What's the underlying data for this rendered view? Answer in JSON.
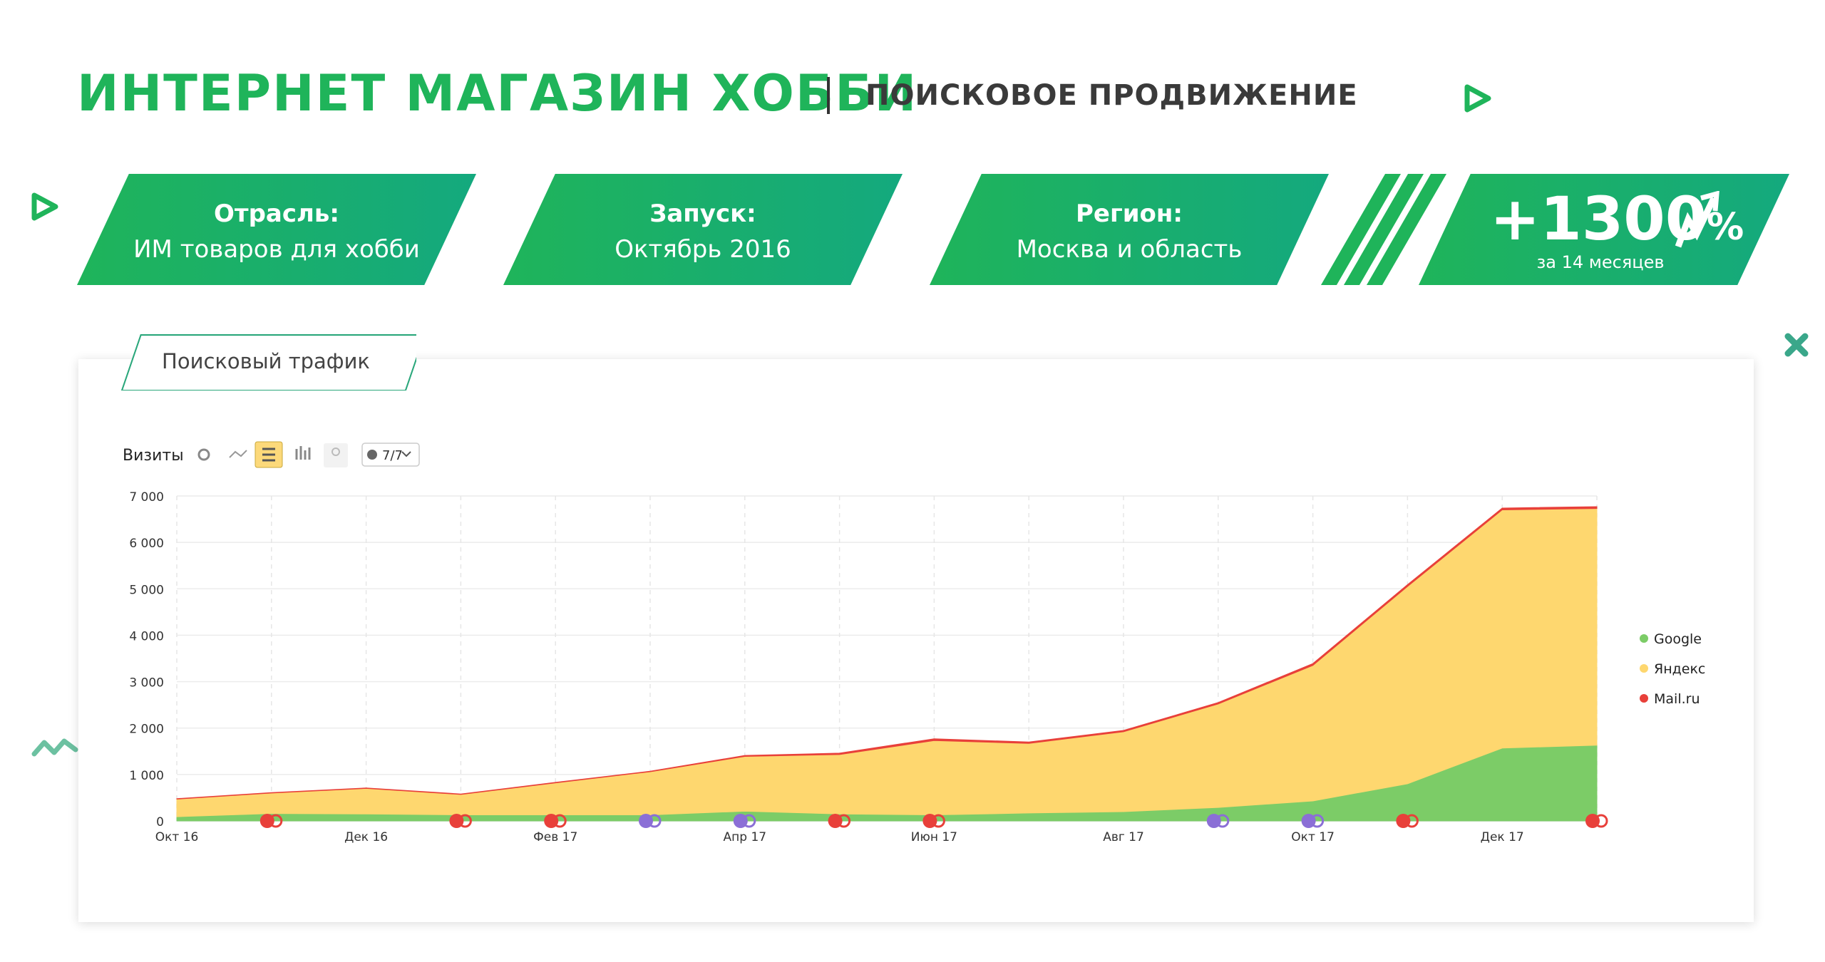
{
  "header": {
    "title": "ИНТЕРНЕТ МАГАЗИН ХОББИ",
    "subtitle": "ПОИСКОВОЕ ПРОДВИЖЕНИЕ"
  },
  "cards": [
    {
      "label": "Отрасль:",
      "value": "ИМ товаров для хобби"
    },
    {
      "label": "Запуск:",
      "value": "Октябрь 2016"
    },
    {
      "label": "Регион:",
      "value": "Москва и область"
    }
  ],
  "growth": {
    "value": "+1300",
    "unit": "%",
    "caption": "за 14 месяцев"
  },
  "panel": {
    "tab_label": "Поисковый трафик",
    "metric_label": "Визиты",
    "segment_selector": "7/7"
  },
  "colors": {
    "google": "#7ccc67",
    "yandex": "#fed76f",
    "mailru": "#e8403a",
    "accent": "#1fb45a"
  },
  "chart_data": {
    "type": "area",
    "stacked": true,
    "title": "",
    "ylabel": "",
    "xlabel": "",
    "ylim": [
      0,
      7000
    ],
    "y_ticks": [
      "0",
      "1 000",
      "2 000",
      "3 000",
      "4 000",
      "5 000",
      "6 000",
      "7 000"
    ],
    "x_tick_labels": [
      {
        "index": 0,
        "label": "Окт 16"
      },
      {
        "index": 2,
        "label": "Дек 16"
      },
      {
        "index": 4,
        "label": "Фев 17"
      },
      {
        "index": 6,
        "label": "Апр 17"
      },
      {
        "index": 8,
        "label": "Июн 17"
      },
      {
        "index": 10,
        "label": "Авг 17"
      },
      {
        "index": 12,
        "label": "Окт 17"
      },
      {
        "index": 14,
        "label": "Дек 17"
      }
    ],
    "points": 16,
    "series": [
      {
        "name": "Google",
        "color": "#7ccc67",
        "values": [
          90,
          160,
          150,
          130,
          130,
          130,
          210,
          150,
          130,
          170,
          200,
          290,
          430,
          800,
          1570,
          1630
        ]
      },
      {
        "name": "Яндекс",
        "color": "#fed76f",
        "values": [
          380,
          440,
          550,
          440,
          690,
          930,
          1180,
          1280,
          1600,
          1500,
          1720,
          2230,
          2920,
          4250,
          5130,
          5100
        ]
      },
      {
        "name": "Mail.ru",
        "color": "#e8403a",
        "values": [
          10,
          10,
          10,
          10,
          10,
          10,
          20,
          30,
          40,
          30,
          30,
          30,
          40,
          40,
          40,
          40
        ]
      }
    ],
    "legend": "right",
    "grid": true
  },
  "legend_items": [
    "Google",
    "Яндекс",
    "Mail.ru"
  ]
}
